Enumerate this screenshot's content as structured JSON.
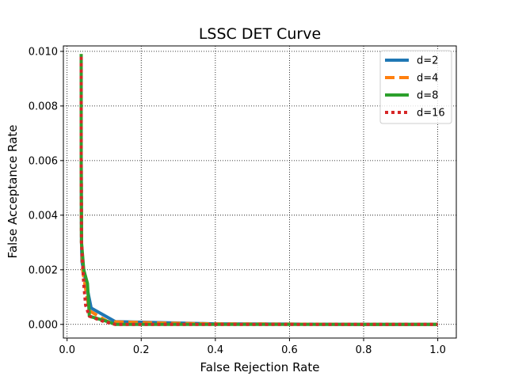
{
  "chart_data": {
    "type": "line",
    "title": "LSSC DET Curve",
    "xlabel": "False  Rejection  Rate",
    "ylabel": "False  Acceptance  Rate",
    "xlim": [
      -0.01,
      1.05
    ],
    "ylim": [
      -0.0005,
      0.0102
    ],
    "xticks": [
      0.0,
      0.2,
      0.4,
      0.6,
      0.8,
      1.0
    ],
    "xtick_labels": [
      "0.0",
      "0.2",
      "0.4",
      "0.6",
      "0.8",
      "1.0"
    ],
    "yticks": [
      0.0,
      0.002,
      0.004,
      0.006,
      0.008,
      0.01
    ],
    "ytick_labels": [
      "0.000",
      "0.002",
      "0.004",
      "0.006",
      "0.008",
      "0.010"
    ],
    "grid": true,
    "legend_position": "top-right",
    "series": [
      {
        "name": "d=2",
        "color": "#1f77b4",
        "dash": "solid",
        "x": [
          0.038,
          0.038,
          0.039,
          0.04,
          0.05,
          0.065,
          0.13,
          0.3,
          0.4,
          0.6,
          0.8,
          1.0
        ],
        "y": [
          0.0098,
          0.006,
          0.003,
          0.0023,
          0.0016,
          0.0006,
          0.0001,
          5e-05,
          2e-05,
          1e-05,
          0.0,
          0.0
        ]
      },
      {
        "name": "d=4",
        "color": "#ff7f0e",
        "dash": "dashed",
        "x": [
          0.038,
          0.038,
          0.039,
          0.042,
          0.05,
          0.06,
          0.11,
          0.25,
          0.4,
          0.6,
          0.8,
          1.0
        ],
        "y": [
          0.0099,
          0.006,
          0.003,
          0.002,
          0.0013,
          0.0005,
          0.0001,
          5e-05,
          2e-05,
          1e-05,
          0.0,
          0.0
        ]
      },
      {
        "name": "d=8",
        "color": "#2ca02c",
        "dash": "solid",
        "x": [
          0.038,
          0.038,
          0.039,
          0.045,
          0.055,
          0.06,
          0.11,
          0.13,
          0.3,
          0.5,
          0.8,
          1.0
        ],
        "y": [
          0.0099,
          0.006,
          0.003,
          0.002,
          0.0015,
          0.0003,
          0.0001,
          0.0,
          0.0,
          0.0,
          0.0,
          0.0
        ]
      },
      {
        "name": "d=16",
        "color": "#d62728",
        "dash": "dotted",
        "x": [
          0.038,
          0.038,
          0.039,
          0.045,
          0.05,
          0.06,
          0.1,
          0.13,
          0.3,
          0.5,
          0.8,
          1.0
        ],
        "y": [
          0.0098,
          0.006,
          0.003,
          0.0015,
          0.0007,
          0.0003,
          0.0001,
          0.0,
          0.0,
          0.0,
          0.0,
          0.0
        ]
      }
    ]
  }
}
